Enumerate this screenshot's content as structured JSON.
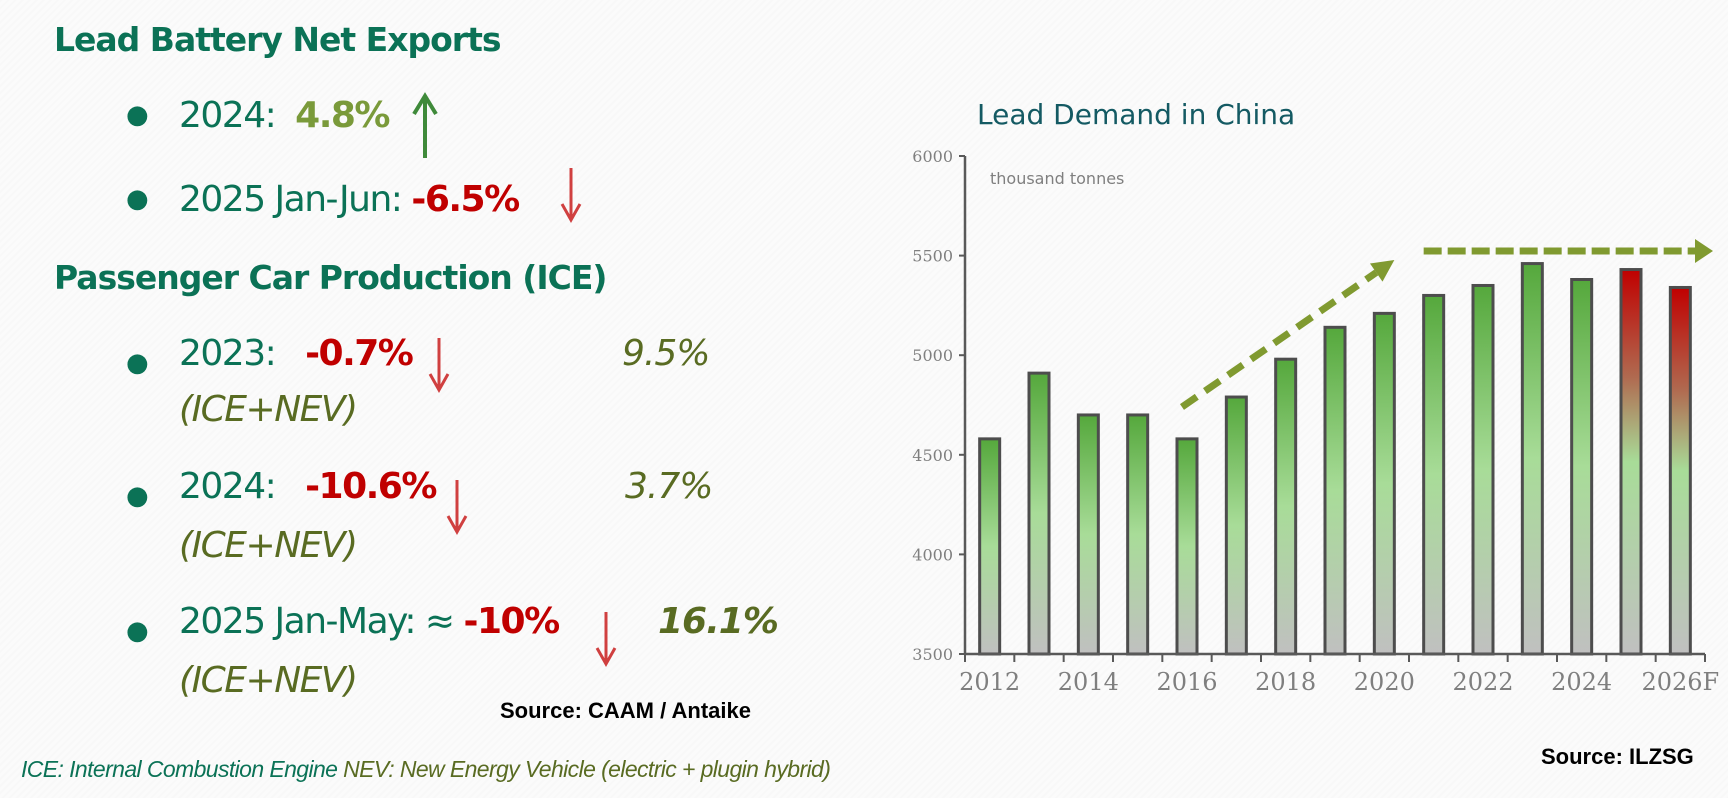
{
  "left": {
    "section1": {
      "heading": "Lead Battery Net Exports",
      "items": [
        {
          "label": "2024:",
          "value": "4.8%",
          "trend": "up"
        },
        {
          "label": "2025 Jan-Jun:",
          "value": "-6.5%",
          "trend": "down"
        }
      ]
    },
    "section2": {
      "heading": "Passenger Car Production (ICE)",
      "items": [
        {
          "label": "2023:",
          "value": "-0.7%",
          "trend": "down",
          "total_value": "9.5%",
          "total_label": "(ICE+NEV)"
        },
        {
          "label": "2024:",
          "value": "-10.6%",
          "trend": "down",
          "total_value": "3.7%",
          "total_label": "(ICE+NEV)"
        },
        {
          "label": "2025 Jan-May: ≈",
          "value": "-10%",
          "trend": "down",
          "total_value": "16.1%",
          "total_label": "(ICE+NEV)"
        }
      ]
    },
    "source": "Source: CAAM / Antaike",
    "footer": {
      "ice": "ICE: Internal Combustion Engine",
      "nev": "NEV: New Energy Vehicle (electric + plugin hybrid)"
    },
    "icons": {
      "up": "arrow-up-icon",
      "down": "arrow-down-icon"
    },
    "colors": {
      "heading": "#0b7256",
      "positive": "#7a9a3a",
      "negative": "#c00000",
      "total": "#596b22",
      "up_arrow": "#3f8a3a",
      "down_arrow": "#d04040"
    }
  },
  "chart_source": "Source: ILZSG",
  "chart_data": {
    "type": "bar",
    "title": "Lead Demand in China",
    "ylabel": "thousand tonnes",
    "xlabel": "",
    "categories": [
      "2012",
      "2013",
      "2014",
      "2015",
      "2016",
      "2017",
      "2018",
      "2019",
      "2020",
      "2021",
      "2022",
      "2023",
      "2024",
      "2025",
      "2026F"
    ],
    "x_tick_labels": [
      "2012",
      "2014",
      "2016",
      "2018",
      "2020",
      "2022",
      "2024",
      "2026F"
    ],
    "values": [
      4580,
      4910,
      4700,
      4700,
      4580,
      4790,
      4980,
      5140,
      5210,
      5300,
      5350,
      5460,
      5380,
      5430,
      5340
    ],
    "forecast_categories": [
      "2025",
      "2026F"
    ],
    "ylim": [
      3500,
      6000
    ],
    "yticks": [
      3500,
      4000,
      4500,
      5000,
      5500,
      6000
    ],
    "grid": false,
    "legend": "none",
    "annotations": [
      {
        "type": "dashed-arrow",
        "meaning": "rising trend",
        "from_category": "2016",
        "to_category": "2020"
      },
      {
        "type": "dashed-arrow",
        "meaning": "flat trend",
        "from_category": "2021",
        "to_category": "2026F"
      }
    ],
    "colors": {
      "actual_top": "#55a83c",
      "actual_mid": "#a8dc98",
      "forecast_top": "#c00000",
      "bar_bottom": "#c0c0c0",
      "trend_arrow": "#809a30",
      "axis": "#595959"
    }
  }
}
